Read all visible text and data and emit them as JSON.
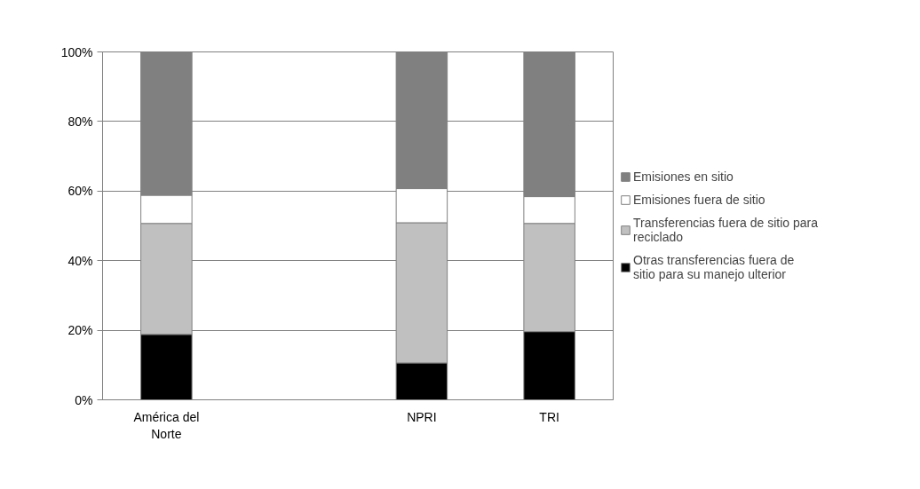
{
  "chart_data": {
    "type": "bar",
    "stacked": true,
    "categories": [
      "América del Norte",
      null,
      "NPRI",
      "TRI"
    ],
    "series": [
      {
        "name": "Otras transferencias fuera de sitio para su manejo ulterior",
        "color": "#000000",
        "values": [
          18.8,
          null,
          10.6,
          19.6
        ]
      },
      {
        "name": "Transferencias fuera de sitio para reciclado",
        "color": "#c0c0c0",
        "values": [
          31.9,
          null,
          40.3,
          31.1
        ]
      },
      {
        "name": "Emisiones fuera de sitio",
        "color": "#ffffff",
        "values": [
          8.1,
          null,
          9.8,
          7.7
        ]
      },
      {
        "name": "Emisiones en sitio",
        "color": "#808080",
        "values": [
          41.2,
          null,
          39.3,
          41.6
        ]
      }
    ],
    "ylim": [
      0,
      100
    ],
    "yticks": [
      {
        "value": 0,
        "label": "0%"
      },
      {
        "value": 20,
        "label": "20%"
      },
      {
        "value": 40,
        "label": "40%"
      },
      {
        "value": 60,
        "label": "60%"
      },
      {
        "value": 80,
        "label": "80%"
      },
      {
        "value": 100,
        "label": "100%"
      }
    ],
    "grid": "y",
    "legend": "right"
  }
}
